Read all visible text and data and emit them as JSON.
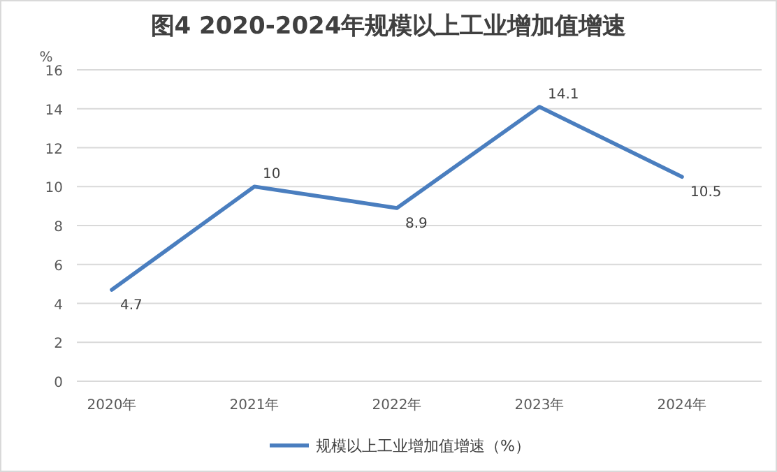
{
  "chart_data": {
    "type": "line",
    "title": "图4 2020-2024年规模以上工业增加值增速",
    "ylabel": "%",
    "categories": [
      "2020年",
      "2021年",
      "2022年",
      "2023年",
      "2024年"
    ],
    "series": [
      {
        "name": "规模以上工业增加值增速（%）",
        "color": "#4a7ebf",
        "values": [
          4.7,
          10,
          8.9,
          14.1,
          10.5
        ]
      }
    ],
    "ylim": [
      0,
      16
    ],
    "yticks": [
      0,
      2,
      4,
      6,
      8,
      10,
      12,
      14,
      16
    ],
    "grid": "y",
    "legend": "bottom",
    "data_labels": true,
    "marker": "none",
    "line_style": "solid"
  }
}
